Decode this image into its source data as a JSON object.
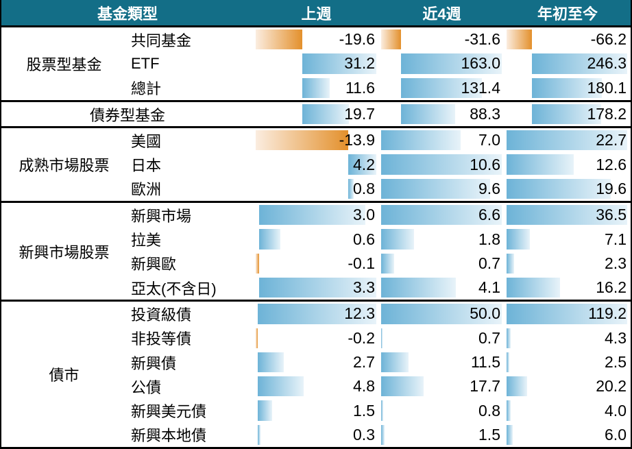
{
  "chart_data": {
    "type": "table",
    "header": {
      "type": "基金類型",
      "columns": [
        "上週",
        "近4週",
        "年初至今"
      ]
    },
    "colors": {
      "header_bg": "#136e87",
      "positive_bar": "#6db3d7",
      "negative_bar": "#e3902c"
    },
    "groups": [
      {
        "name": "股票型基金",
        "scale": "equity",
        "rows": [
          {
            "label": "共同基金",
            "values": [
              "-19.6",
              "-31.6",
              "-66.2"
            ]
          },
          {
            "label": "ETF",
            "values": [
              "31.2",
              "163.0",
              "246.3"
            ]
          },
          {
            "label": "總計",
            "values": [
              "11.6",
              "131.4",
              "180.1"
            ]
          }
        ]
      },
      {
        "name": "債券型基金",
        "span": true,
        "scale": "equity",
        "rows": [
          {
            "label": "",
            "values": [
              "19.7",
              "88.3",
              "178.2"
            ]
          }
        ]
      },
      {
        "name": "成熟市場股票",
        "scale": "mature",
        "rows": [
          {
            "label": "美國",
            "values": [
              "-13.9",
              "7.0",
              "22.7"
            ]
          },
          {
            "label": "日本",
            "values": [
              "4.2",
              "10.6",
              "12.6"
            ]
          },
          {
            "label": "歐洲",
            "values": [
              "0.8",
              "9.6",
              "19.6"
            ]
          }
        ]
      },
      {
        "name": "新興市場股票",
        "scale": "emerging",
        "rows": [
          {
            "label": "新興市場",
            "values": [
              "3.0",
              "6.6",
              "36.5"
            ]
          },
          {
            "label": "拉美",
            "values": [
              "0.6",
              "1.8",
              "7.1"
            ]
          },
          {
            "label": "新興歐",
            "values": [
              "-0.1",
              "0.7",
              "2.3"
            ]
          },
          {
            "label": "亞太(不含日)",
            "values": [
              "3.3",
              "4.1",
              "16.2"
            ]
          }
        ]
      },
      {
        "name": "債市",
        "scale": "debt",
        "rows": [
          {
            "label": "投資級債",
            "values": [
              "12.3",
              "50.0",
              "119.2"
            ]
          },
          {
            "label": "非投等債",
            "values": [
              "-0.2",
              "0.7",
              "4.3"
            ]
          },
          {
            "label": "新興債",
            "values": [
              "2.7",
              "11.5",
              "2.5"
            ]
          },
          {
            "label": "公債",
            "values": [
              "4.8",
              "17.7",
              "20.2"
            ]
          },
          {
            "label": "新興美元債",
            "values": [
              "1.5",
              "0.8",
              "4.0"
            ]
          },
          {
            "label": "新興本地債",
            "values": [
              "0.3",
              "1.5",
              "6.0"
            ]
          }
        ]
      }
    ]
  }
}
